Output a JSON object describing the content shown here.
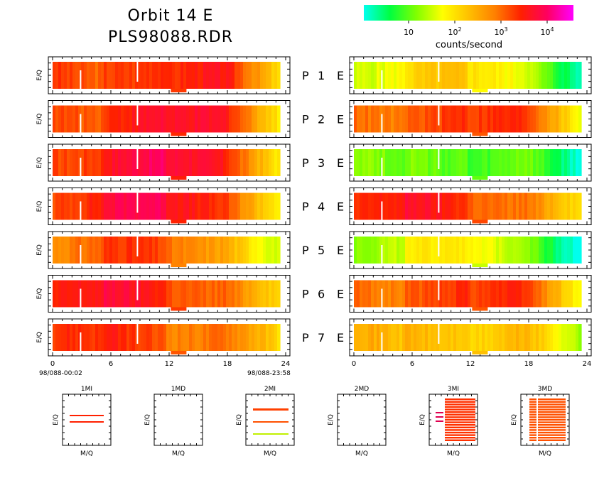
{
  "header": {
    "title_line1": "Orbit  14  E",
    "title_line2": "PLS98088.RDR"
  },
  "colorbar": {
    "label": "counts/second",
    "ticks": [
      {
        "base": "10",
        "exp": ""
      },
      {
        "base": "10",
        "exp": "2"
      },
      {
        "base": "10",
        "exp": "3"
      },
      {
        "base": "10",
        "exp": "4"
      }
    ],
    "colors": [
      "#00ffee",
      "#00ff40",
      "#80ff00",
      "#ffff00",
      "#ffc000",
      "#ff8000",
      "#ff2000",
      "#ff0060",
      "#ff00ff"
    ]
  },
  "chart_data": [
    {
      "type": "heatmap",
      "description_panels": "spectrogram rows P1..P7 for two detector columns",
      "rows": [
        {
          "label_p": "P",
          "num": "1",
          "label_e": "E",
          "left_level": 0.72,
          "right_level": 0.38
        },
        {
          "label_p": "P",
          "num": "2",
          "label_e": "E",
          "left_level": 0.74,
          "right_level": 0.68
        },
        {
          "label_p": "P",
          "num": "3",
          "label_e": "E",
          "left_level": 0.76,
          "right_level": 0.22
        },
        {
          "label_p": "P",
          "num": "4",
          "label_e": "E",
          "left_level": 0.75,
          "right_level": 0.7
        },
        {
          "label_p": "P",
          "num": "5",
          "label_e": "E",
          "left_level": 0.62,
          "right_level": 0.32
        },
        {
          "label_p": "P",
          "num": "6",
          "label_e": "E",
          "left_level": 0.72,
          "right_level": 0.68
        },
        {
          "label_p": "P",
          "num": "7",
          "label_e": "E",
          "left_level": 0.68,
          "right_level": 0.5
        }
      ],
      "ylabel": "E/Q",
      "x_ticks": [
        "0",
        "6",
        "12",
        "18",
        "24"
      ],
      "xlim": [
        0,
        24
      ],
      "time_start": "98/088-00:02",
      "time_end": "98/088-23:58"
    },
    {
      "type": "scatter",
      "description_panels": "mass-per-charge bin panels",
      "panels": [
        {
          "title": "1MI",
          "xlabel": "M/Q",
          "ylabel": "E/Q"
        },
        {
          "title": "1MD",
          "xlabel": "M/Q",
          "ylabel": "E/Q"
        },
        {
          "title": "2MI",
          "xlabel": "M/Q",
          "ylabel": "E/Q"
        },
        {
          "title": "2MD",
          "xlabel": "M/Q",
          "ylabel": "E/Q"
        },
        {
          "title": "3MI",
          "xlabel": "M/Q",
          "ylabel": "E/Q"
        },
        {
          "title": "3MD",
          "xlabel": "M/Q",
          "ylabel": "E/Q"
        }
      ]
    }
  ]
}
